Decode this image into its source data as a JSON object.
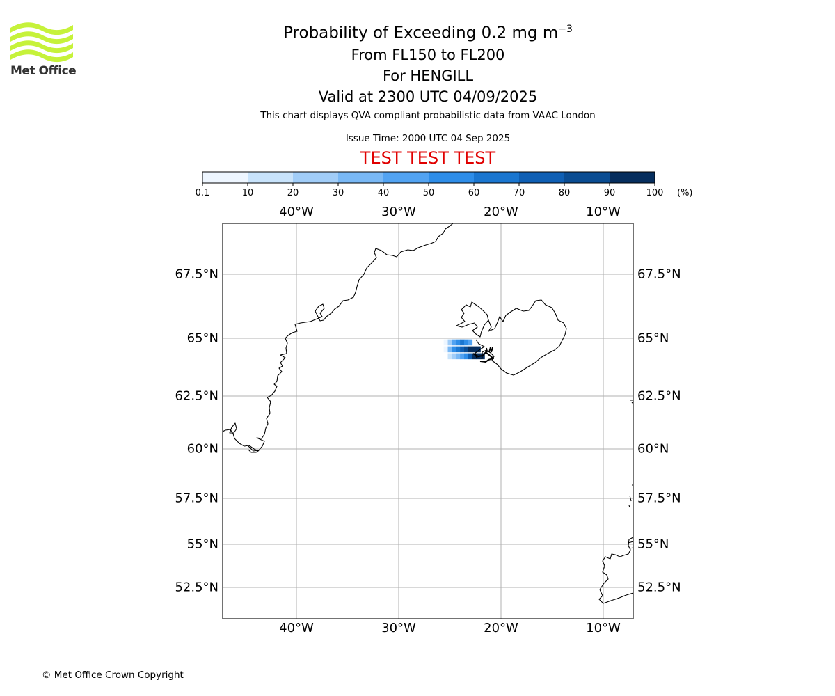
{
  "branding": {
    "logo_text": "Met Office",
    "logo_color": "#c6f23a"
  },
  "title": {
    "line1_prefix": "Probability of Exceeding 0.2 mg m",
    "line1_superscript": "−3",
    "line2": "From FL150 to FL200",
    "line3": "For HENGILL",
    "line4": "Valid at 2300 UTC 04/09/2025"
  },
  "subtitle": {
    "description": "This chart displays QVA compliant probabilistic data from VAAC London",
    "issue_time": "Issue Time: 2000 UTC 04 Sep 2025"
  },
  "test_banner": {
    "text": "TEST TEST TEST",
    "color": "#e00000"
  },
  "colorbar": {
    "ticks": [
      "0.1",
      "10",
      "20",
      "30",
      "40",
      "50",
      "60",
      "70",
      "80",
      "90",
      "100"
    ],
    "unit": "(%)",
    "colors": [
      "#eef6ff",
      "#c8e3fb",
      "#a1cdf8",
      "#79b8f5",
      "#52a3f2",
      "#2e8de8",
      "#1a76d0",
      "#0f5fb4",
      "#0a4c92",
      "#062e5e"
    ]
  },
  "map": {
    "lon_labels": [
      "40°W",
      "30°W",
      "20°W",
      "10°W"
    ],
    "lat_labels": [
      "67.5°N",
      "65°N",
      "62.5°N",
      "60°N",
      "57.5°N",
      "55°N",
      "52.5°N"
    ],
    "lon_ticks": [
      -40,
      -30,
      -20,
      -10
    ],
    "lat_ticks": [
      67.5,
      65,
      62.5,
      60,
      57.5,
      55,
      52.5
    ],
    "volcano": "HENGILL",
    "probability_cells": [
      {
        "lon": -25.4,
        "lat": 64.8,
        "prob": 5
      },
      {
        "lon": -25.4,
        "lat": 64.5,
        "prob": 5
      },
      {
        "lon": -25.0,
        "lat": 64.8,
        "prob": 25
      },
      {
        "lon": -25.0,
        "lat": 64.5,
        "prob": 35
      },
      {
        "lon": -25.0,
        "lat": 64.2,
        "prob": 15
      },
      {
        "lon": -24.6,
        "lat": 64.8,
        "prob": 45
      },
      {
        "lon": -24.6,
        "lat": 64.5,
        "prob": 55
      },
      {
        "lon": -24.6,
        "lat": 64.2,
        "prob": 25
      },
      {
        "lon": -24.2,
        "lat": 64.8,
        "prob": 55
      },
      {
        "lon": -24.2,
        "lat": 64.5,
        "prob": 65
      },
      {
        "lon": -24.2,
        "lat": 64.2,
        "prob": 35
      },
      {
        "lon": -23.8,
        "lat": 64.8,
        "prob": 65
      },
      {
        "lon": -23.8,
        "lat": 64.5,
        "prob": 75
      },
      {
        "lon": -23.8,
        "lat": 64.2,
        "prob": 45
      },
      {
        "lon": -23.4,
        "lat": 64.8,
        "prob": 55
      },
      {
        "lon": -23.4,
        "lat": 64.5,
        "prob": 85
      },
      {
        "lon": -23.4,
        "lat": 64.2,
        "prob": 55
      },
      {
        "lon": -23.0,
        "lat": 64.8,
        "prob": 45
      },
      {
        "lon": -23.0,
        "lat": 64.5,
        "prob": 95
      },
      {
        "lon": -23.0,
        "lat": 64.2,
        "prob": 75
      },
      {
        "lon": -22.6,
        "lat": 64.5,
        "prob": 95
      },
      {
        "lon": -22.6,
        "lat": 64.2,
        "prob": 95
      },
      {
        "lon": -22.2,
        "lat": 64.5,
        "prob": 95
      },
      {
        "lon": -22.2,
        "lat": 64.2,
        "prob": 95
      },
      {
        "lon": -21.8,
        "lat": 64.2,
        "prob": 95
      }
    ]
  },
  "footer": {
    "copyright": "© Met Office Crown Copyright"
  }
}
